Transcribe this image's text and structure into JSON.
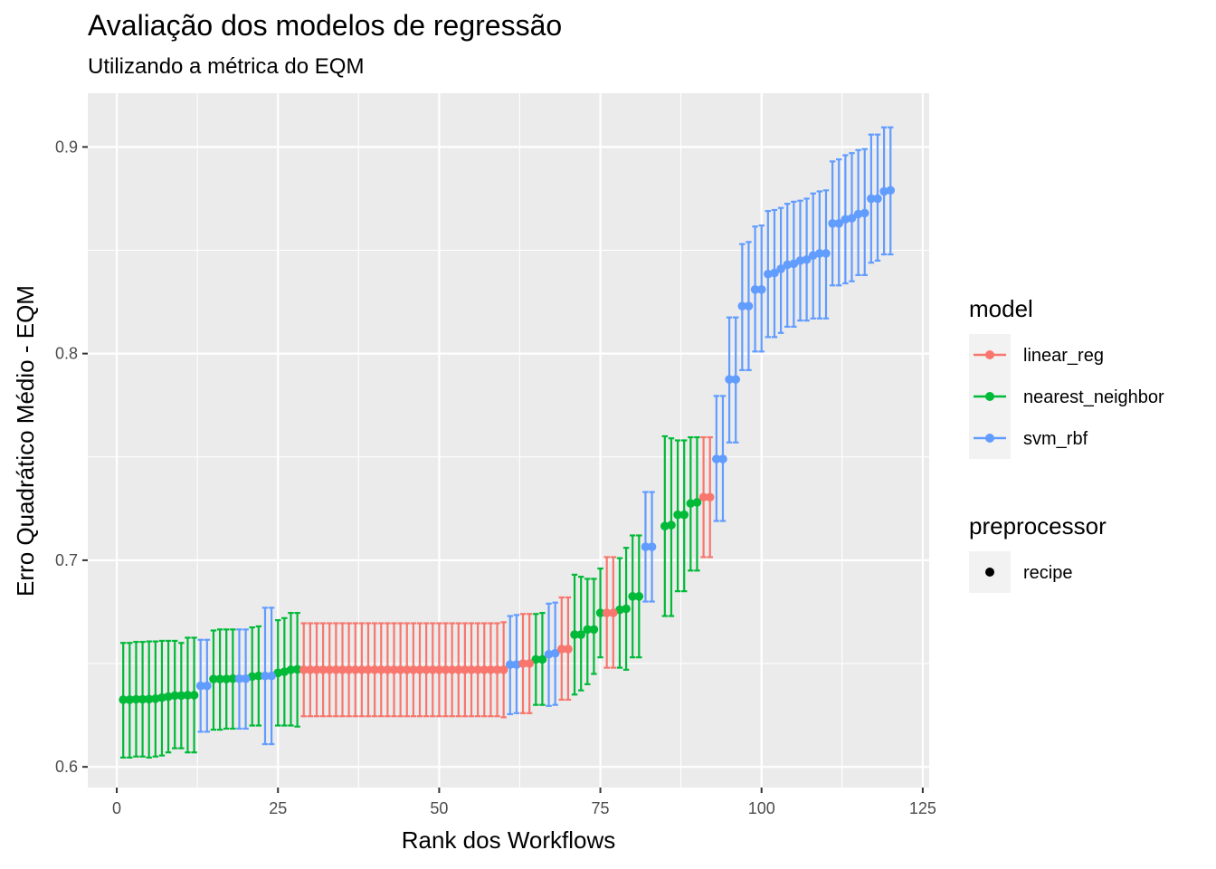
{
  "chart_data": {
    "type": "scatter",
    "title": "Avaliação dos modelos de regressão",
    "subtitle": "Utilizando a métrica do EQM",
    "xlabel": "Rank dos Workflows",
    "ylabel": "Erro Quadrático Médio - EQM",
    "xlim": [
      -4.5,
      126
    ],
    "ylim": [
      0.59,
      0.926
    ],
    "xticks": [
      0,
      25,
      50,
      75,
      100,
      125
    ],
    "xtick_labels": [
      "0",
      "25",
      "50",
      "75",
      "100",
      "125"
    ],
    "yticks": [
      0.6,
      0.7,
      0.8,
      0.9
    ],
    "ytick_labels": [
      "0.6",
      "0.7",
      "0.8",
      "0.9"
    ],
    "grid": true,
    "legend_placement": "right",
    "legends": [
      {
        "title": "model",
        "entries": [
          {
            "label": "linear_reg",
            "color": "#F8766D"
          },
          {
            "label": "nearest_neighbor",
            "color": "#00BA38"
          },
          {
            "label": "svm_rbf",
            "color": "#619CFF"
          }
        ]
      },
      {
        "title": "preprocessor",
        "entries": [
          {
            "label": "recipe",
            "color": "#000000"
          }
        ]
      }
    ],
    "series": [
      {
        "name": "nearest_neighbor",
        "color": "#00BA38",
        "points": [
          [
            1,
            0.6325,
            0.6045,
            0.66
          ],
          [
            2,
            0.6325,
            0.6045,
            0.66
          ],
          [
            3,
            0.6327,
            0.605,
            0.6605
          ],
          [
            4,
            0.6327,
            0.605,
            0.6605
          ],
          [
            5,
            0.6328,
            0.6045,
            0.6607
          ],
          [
            6,
            0.633,
            0.605,
            0.6607
          ],
          [
            7,
            0.6335,
            0.6055,
            0.661
          ],
          [
            8,
            0.634,
            0.607,
            0.661
          ],
          [
            9,
            0.6345,
            0.609,
            0.661
          ],
          [
            10,
            0.6345,
            0.609,
            0.66
          ],
          [
            11,
            0.6347,
            0.607,
            0.6625
          ],
          [
            12,
            0.6347,
            0.607,
            0.6625
          ],
          [
            15,
            0.6425,
            0.618,
            0.666
          ],
          [
            16,
            0.6425,
            0.618,
            0.6665
          ],
          [
            17,
            0.6425,
            0.6185,
            0.6665
          ],
          [
            18,
            0.6427,
            0.6185,
            0.6665
          ],
          [
            21,
            0.6437,
            0.62,
            0.6675
          ],
          [
            22,
            0.644,
            0.62,
            0.668
          ],
          [
            25,
            0.6455,
            0.62,
            0.671
          ],
          [
            26,
            0.646,
            0.62,
            0.672
          ],
          [
            27,
            0.647,
            0.62,
            0.6745
          ],
          [
            28,
            0.6472,
            0.6195,
            0.6745
          ],
          [
            65,
            0.652,
            0.63,
            0.674
          ],
          [
            66,
            0.652,
            0.63,
            0.6745
          ],
          [
            71,
            0.664,
            0.635,
            0.693
          ],
          [
            72,
            0.664,
            0.637,
            0.692
          ],
          [
            73,
            0.6665,
            0.64,
            0.691
          ],
          [
            74,
            0.6665,
            0.645,
            0.691
          ],
          [
            75,
            0.6745,
            0.653,
            0.696
          ],
          [
            78,
            0.676,
            0.648,
            0.701
          ],
          [
            79,
            0.6765,
            0.647,
            0.706
          ],
          [
            80,
            0.6825,
            0.653,
            0.712
          ],
          [
            81,
            0.6825,
            0.653,
            0.712
          ],
          [
            85,
            0.7165,
            0.673,
            0.76
          ],
          [
            86,
            0.717,
            0.673,
            0.759
          ],
          [
            87,
            0.722,
            0.685,
            0.758
          ],
          [
            88,
            0.722,
            0.685,
            0.758
          ],
          [
            89,
            0.7275,
            0.695,
            0.7595
          ],
          [
            90,
            0.728,
            0.695,
            0.7595
          ]
        ]
      },
      {
        "name": "svm_rbf",
        "color": "#619CFF",
        "points": [
          [
            13,
            0.6392,
            0.617,
            0.6615
          ],
          [
            14,
            0.6392,
            0.617,
            0.6615
          ],
          [
            19,
            0.6427,
            0.6185,
            0.6665
          ],
          [
            20,
            0.6427,
            0.6185,
            0.6665
          ],
          [
            23,
            0.644,
            0.611,
            0.677
          ],
          [
            24,
            0.644,
            0.611,
            0.677
          ],
          [
            61,
            0.6495,
            0.6255,
            0.673
          ],
          [
            62,
            0.6495,
            0.626,
            0.6735
          ],
          [
            67,
            0.6545,
            0.6295,
            0.679
          ],
          [
            68,
            0.655,
            0.63,
            0.6795
          ],
          [
            82,
            0.7065,
            0.68,
            0.733
          ],
          [
            83,
            0.7065,
            0.68,
            0.733
          ],
          [
            93,
            0.749,
            0.719,
            0.7795
          ],
          [
            94,
            0.749,
            0.719,
            0.7795
          ],
          [
            95,
            0.7875,
            0.757,
            0.8175
          ],
          [
            96,
            0.7875,
            0.757,
            0.8175
          ],
          [
            97,
            0.823,
            0.792,
            0.853
          ],
          [
            98,
            0.823,
            0.792,
            0.854
          ],
          [
            99,
            0.831,
            0.801,
            0.8615
          ],
          [
            100,
            0.831,
            0.801,
            0.862
          ],
          [
            101,
            0.8385,
            0.808,
            0.869
          ],
          [
            102,
            0.839,
            0.808,
            0.8695
          ],
          [
            103,
            0.841,
            0.81,
            0.8705
          ],
          [
            104,
            0.843,
            0.813,
            0.8725
          ],
          [
            105,
            0.8435,
            0.813,
            0.8735
          ],
          [
            106,
            0.845,
            0.816,
            0.874
          ],
          [
            107,
            0.8455,
            0.816,
            0.875
          ],
          [
            108,
            0.8475,
            0.817,
            0.8775
          ],
          [
            109,
            0.8485,
            0.817,
            0.8785
          ],
          [
            110,
            0.8485,
            0.817,
            0.879
          ],
          [
            111,
            0.863,
            0.833,
            0.893
          ],
          [
            112,
            0.863,
            0.833,
            0.894
          ],
          [
            113,
            0.865,
            0.834,
            0.896
          ],
          [
            114,
            0.8655,
            0.835,
            0.897
          ],
          [
            115,
            0.8675,
            0.838,
            0.8985
          ],
          [
            116,
            0.868,
            0.838,
            0.899
          ],
          [
            117,
            0.875,
            0.844,
            0.906
          ],
          [
            118,
            0.875,
            0.845,
            0.906
          ],
          [
            119,
            0.8785,
            0.848,
            0.9095
          ],
          [
            120,
            0.879,
            0.848,
            0.9095
          ]
        ]
      },
      {
        "name": "linear_reg",
        "color": "#F8766D",
        "points": [
          [
            29,
            0.647,
            0.6245,
            0.6695
          ],
          [
            30,
            0.647,
            0.6245,
            0.6695
          ],
          [
            31,
            0.647,
            0.6245,
            0.6695
          ],
          [
            32,
            0.647,
            0.6245,
            0.6695
          ],
          [
            33,
            0.647,
            0.6245,
            0.6695
          ],
          [
            34,
            0.647,
            0.6245,
            0.6695
          ],
          [
            35,
            0.647,
            0.6245,
            0.6695
          ],
          [
            36,
            0.647,
            0.6245,
            0.6695
          ],
          [
            37,
            0.647,
            0.6245,
            0.6695
          ],
          [
            38,
            0.647,
            0.6245,
            0.6695
          ],
          [
            39,
            0.647,
            0.6245,
            0.6695
          ],
          [
            40,
            0.647,
            0.6245,
            0.6695
          ],
          [
            41,
            0.647,
            0.6245,
            0.6695
          ],
          [
            42,
            0.647,
            0.6245,
            0.6695
          ],
          [
            43,
            0.647,
            0.6245,
            0.6695
          ],
          [
            44,
            0.647,
            0.6245,
            0.6695
          ],
          [
            45,
            0.647,
            0.6245,
            0.6695
          ],
          [
            46,
            0.647,
            0.6245,
            0.6695
          ],
          [
            47,
            0.647,
            0.6245,
            0.6695
          ],
          [
            48,
            0.647,
            0.6245,
            0.6695
          ],
          [
            49,
            0.647,
            0.6245,
            0.6695
          ],
          [
            50,
            0.647,
            0.6245,
            0.6695
          ],
          [
            51,
            0.647,
            0.6245,
            0.6695
          ],
          [
            52,
            0.647,
            0.6245,
            0.6695
          ],
          [
            53,
            0.647,
            0.6245,
            0.6695
          ],
          [
            54,
            0.647,
            0.6245,
            0.6695
          ],
          [
            55,
            0.647,
            0.6245,
            0.6695
          ],
          [
            56,
            0.647,
            0.6245,
            0.6695
          ],
          [
            57,
            0.647,
            0.6245,
            0.6695
          ],
          [
            58,
            0.647,
            0.6245,
            0.6695
          ],
          [
            59,
            0.647,
            0.6245,
            0.6695
          ],
          [
            60,
            0.647,
            0.624,
            0.67
          ],
          [
            63,
            0.65,
            0.626,
            0.674
          ],
          [
            64,
            0.65,
            0.626,
            0.674
          ],
          [
            69,
            0.657,
            0.6325,
            0.682
          ],
          [
            70,
            0.657,
            0.6325,
            0.682
          ],
          [
            76,
            0.6745,
            0.648,
            0.7015
          ],
          [
            77,
            0.6745,
            0.648,
            0.7015
          ],
          [
            91,
            0.7305,
            0.7015,
            0.7595
          ],
          [
            92,
            0.7305,
            0.7015,
            0.7595
          ]
        ]
      }
    ]
  }
}
